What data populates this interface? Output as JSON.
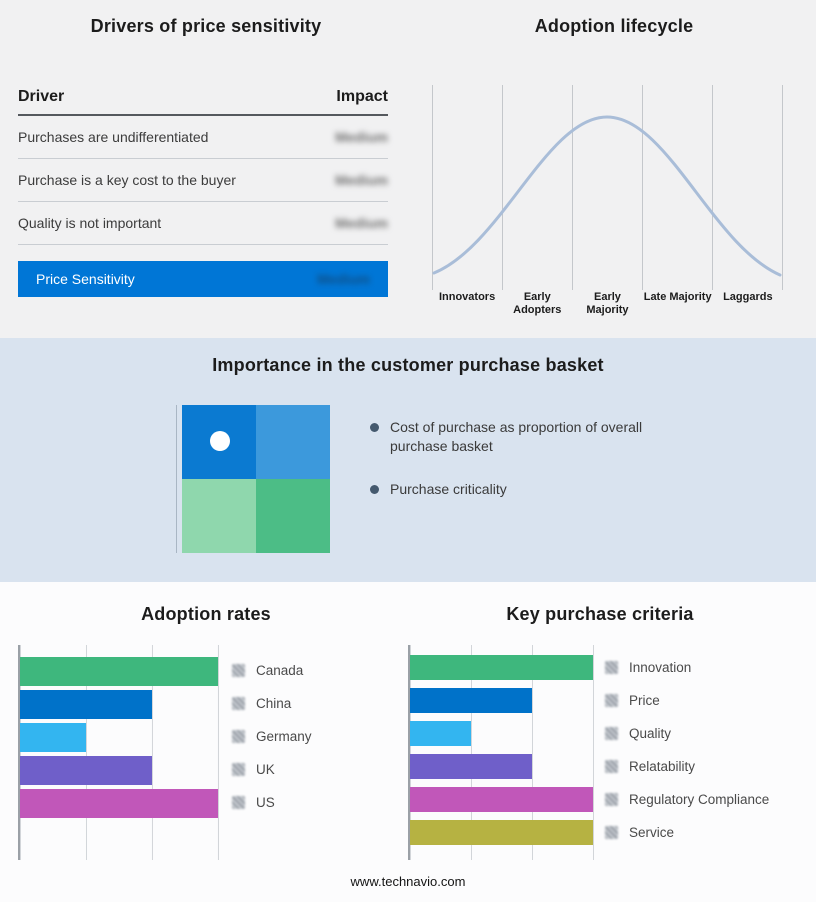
{
  "page": {
    "footer": "www.technavio.com"
  },
  "price_sensitivity": {
    "title": "Drivers of price sensitivity",
    "columns": {
      "driver": "Driver",
      "impact": "Impact"
    },
    "rows": [
      {
        "driver": "Purchases are undifferentiated",
        "impact": "Medium"
      },
      {
        "driver": "Purchase is a key cost to the buyer",
        "impact": "Medium"
      },
      {
        "driver": "Quality is not important",
        "impact": "Medium"
      }
    ],
    "summary": {
      "label": "Price Sensitivity",
      "impact": "Medium"
    },
    "highlight_color": "#0076d6"
  },
  "adoption_lifecycle": {
    "title": "Adoption lifecycle",
    "stages": [
      "Innovators",
      "Early Adopters",
      "Early Majority",
      "Late Majority",
      "Laggards"
    ],
    "curve_color": "#a9bdd8"
  },
  "purchase_basket": {
    "title": "Importance in the customer purchase basket",
    "bullets": [
      "Cost of purchase as proportion of overall purchase basket",
      "Purchase criticality"
    ],
    "quadrant_colors": [
      "#0b7ad1",
      "#3c99dc",
      "#8fd7ad",
      "#4cbd86"
    ]
  },
  "chart_data": [
    {
      "type": "bar",
      "title": "Adoption rates",
      "orientation": "horizontal",
      "categories": [
        "Canada",
        "China",
        "Germany",
        "UK",
        "US"
      ],
      "values": [
        3,
        2,
        1,
        2,
        3
      ],
      "xlim": [
        0,
        3
      ],
      "grid": true,
      "legend_position": "right",
      "colors": [
        "#3eb77d",
        "#0072c9",
        "#33b5f0",
        "#6f5fc9",
        "#c157b9"
      ]
    },
    {
      "type": "bar",
      "title": "Key purchase criteria",
      "orientation": "horizontal",
      "categories": [
        "Innovation",
        "Price",
        "Quality",
        "Relatability",
        "Regulatory Compliance",
        "Service"
      ],
      "values": [
        3,
        2,
        1,
        2,
        3,
        3
      ],
      "xlim": [
        0,
        3
      ],
      "grid": true,
      "legend_position": "right",
      "colors": [
        "#3eb77d",
        "#0072c9",
        "#33b5f0",
        "#6f5fc9",
        "#c157b9",
        "#b6b242"
      ]
    }
  ]
}
